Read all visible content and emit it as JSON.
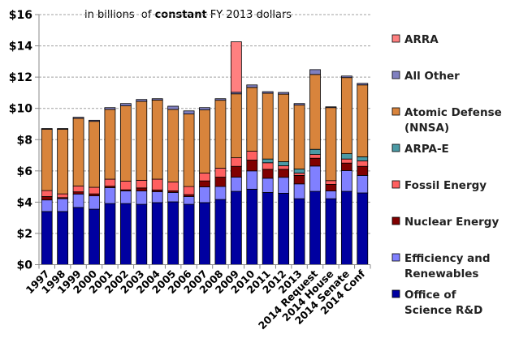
{
  "chart_data": {
    "type": "bar",
    "stacked": true,
    "title_parts": [
      "in billions  of ",
      "constant",
      " FY 2013 dollars"
    ],
    "xlabel": "",
    "ylabel": "",
    "ylim": [
      0,
      16
    ],
    "yticks": [
      0,
      2,
      4,
      6,
      8,
      10,
      12,
      14,
      16
    ],
    "ytick_labels": [
      "$0",
      "$2",
      "$4",
      "$6",
      "$8",
      "$10",
      "$12",
      "$14",
      "$16"
    ],
    "grid": true,
    "legend_position": "right",
    "categories": [
      "1997",
      "1998",
      "1999",
      "2000",
      "2001",
      "2002",
      "2003",
      "2004",
      "2005",
      "2006",
      "2007",
      "2008",
      "2009",
      "2010",
      "2011",
      "2012",
      "2013",
      "2014 Request",
      "2014 House",
      "2014 Senate",
      "2014 Conf"
    ],
    "series": [
      {
        "name": "Office of Science R&D",
        "legend_lines": [
          "Office of",
          "Science R&D"
        ],
        "color": "#0000a0",
        "values": [
          3.4,
          3.4,
          3.66,
          3.55,
          3.91,
          3.91,
          3.86,
          3.97,
          4.02,
          3.86,
          3.97,
          4.17,
          4.69,
          4.83,
          4.62,
          4.57,
          4.22,
          4.69,
          4.22,
          4.69,
          4.59
        ]
      },
      {
        "name": "Efficiency and Renewables",
        "legend_lines": [
          "Efficiency and",
          "Renewables"
        ],
        "color": "#8080ff",
        "values": [
          0.74,
          0.82,
          0.86,
          0.86,
          1.02,
          0.81,
          0.86,
          0.7,
          0.6,
          0.5,
          1.01,
          0.83,
          0.91,
          1.17,
          0.91,
          1.02,
          0.95,
          1.62,
          0.5,
          1.33,
          1.12
        ]
      },
      {
        "name": "Nuclear Energy",
        "legend_lines": [
          "Nuclear Energy"
        ],
        "color": "#800000",
        "values": [
          0.22,
          0.07,
          0.14,
          0.12,
          0.09,
          0.07,
          0.19,
          0.11,
          0.1,
          0.12,
          0.38,
          0.6,
          0.69,
          0.69,
          0.57,
          0.51,
          0.54,
          0.5,
          0.42,
          0.48,
          0.58
        ]
      },
      {
        "name": "Fossil Energy",
        "legend_lines": [
          "Fossil Energy"
        ],
        "color": "#ff6060",
        "values": [
          0.38,
          0.24,
          0.37,
          0.42,
          0.45,
          0.55,
          0.49,
          0.69,
          0.57,
          0.52,
          0.5,
          0.57,
          0.55,
          0.57,
          0.42,
          0.23,
          0.15,
          0.24,
          0.24,
          0.26,
          0.35
        ]
      },
      {
        "name": "ARPA-E",
        "legend_lines": [
          "ARPA-E"
        ],
        "color": "#4b9aa5",
        "values": [
          0,
          0,
          0,
          0,
          0,
          0,
          0,
          0,
          0,
          0,
          0,
          0,
          0,
          0,
          0.24,
          0.26,
          0.26,
          0.33,
          0,
          0.34,
          0.26
        ]
      },
      {
        "name": "Atomic Defense (NNSA)",
        "legend_lines": [
          "Atomic Defense",
          "(NNSA)"
        ],
        "color": "#d8843c",
        "values": [
          3.92,
          4.13,
          4.33,
          4.22,
          4.46,
          4.82,
          5.05,
          5.06,
          4.64,
          4.64,
          4.04,
          4.35,
          4.09,
          4.08,
          4.21,
          4.32,
          4.09,
          4.79,
          4.67,
          4.87,
          4.6
        ]
      },
      {
        "name": "All Other",
        "legend_lines": [
          "All Other"
        ],
        "color": "#8080c0",
        "values": [
          0.05,
          0.05,
          0.07,
          0.07,
          0.12,
          0.15,
          0.12,
          0.09,
          0.21,
          0.2,
          0.15,
          0.1,
          0.1,
          0.16,
          0.1,
          0.11,
          0.1,
          0.31,
          0.05,
          0.1,
          0.1
        ]
      },
      {
        "name": "ARRA",
        "legend_lines": [
          "ARRA"
        ],
        "color": "#ff8080",
        "values": [
          0,
          0,
          0,
          0,
          0,
          0,
          0,
          0,
          0,
          0,
          0,
          0,
          3.23,
          0,
          0,
          0,
          0,
          0,
          0,
          0,
          0
        ]
      }
    ]
  }
}
